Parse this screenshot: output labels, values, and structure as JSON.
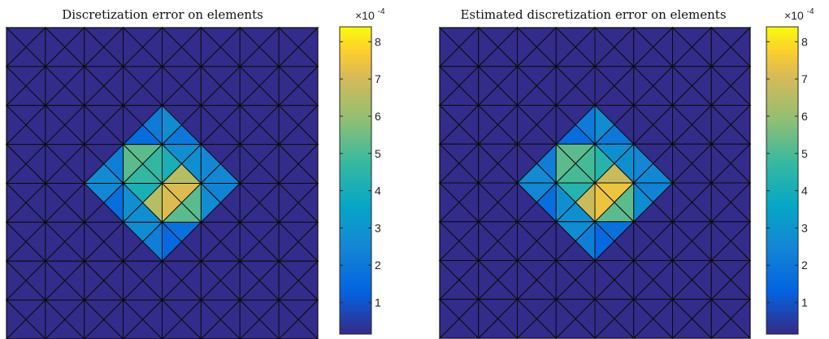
{
  "chart_data": [
    {
      "type": "heatmap",
      "title": "Discretization error on elements",
      "mesh": {
        "cells_x": 8,
        "cells_y": 8,
        "triangles": "crossed squares"
      },
      "colormap": "parula",
      "colorbar": {
        "ticks": [
          "1",
          "2",
          "3",
          "4",
          "5",
          "6",
          "7",
          "8"
        ],
        "range": [
          0.15,
          8.4
        ],
        "multiplier": "×10^-4"
      },
      "field": {
        "center_cell": [
          3.5,
          3.5
        ],
        "peak": 8.4,
        "background": 0.2
      }
    },
    {
      "type": "heatmap",
      "title": "Estimated discretization error on elements",
      "mesh": {
        "cells_x": 8,
        "cells_y": 8,
        "triangles": "crossed squares"
      },
      "colormap": "parula",
      "colorbar": {
        "ticks": [
          "1",
          "2",
          "3",
          "4",
          "5",
          "6",
          "7",
          "8"
        ],
        "range": [
          0.15,
          8.4
        ],
        "multiplier": "×10^-4"
      },
      "field": {
        "center_cell": [
          3.5,
          3.5
        ],
        "peak": 8.4,
        "background": 0.2
      }
    }
  ],
  "labels": {
    "exp_times": "×10",
    "exp_power": "-4"
  }
}
